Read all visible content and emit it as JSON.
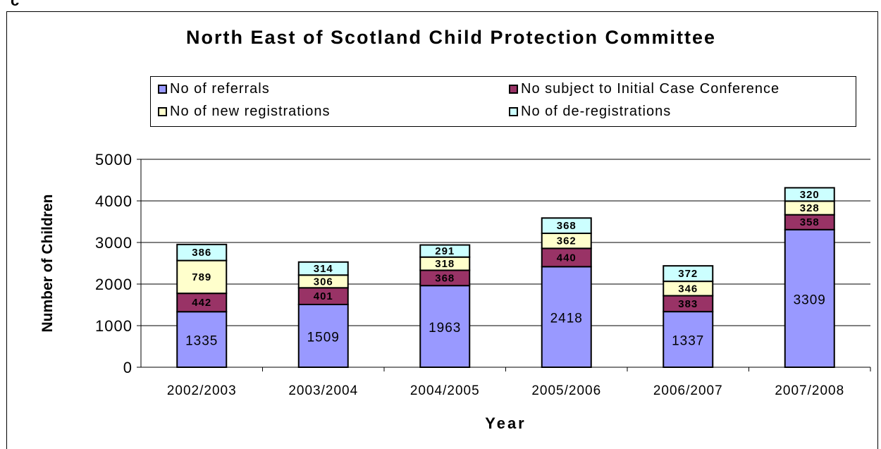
{
  "corner_text": "c",
  "chart_data": {
    "type": "bar",
    "stacked": true,
    "title": "North East of Scotland Child Protection Committee",
    "xlabel": "Year",
    "ylabel": "Number of Children",
    "ylim": [
      0,
      5000
    ],
    "yticks": [
      "0",
      "1000",
      "2000",
      "3000",
      "4000",
      "5000"
    ],
    "grid": true,
    "legend_position": "top",
    "categories": [
      "2002/2003",
      "2003/2004",
      "2004/2005",
      "2005/2006",
      "2006/2007",
      "2007/2008"
    ],
    "series": [
      {
        "name": "No of referrals",
        "color": "#9999ff",
        "values": [
          1335,
          1509,
          1963,
          2418,
          1337,
          3309
        ]
      },
      {
        "name": "No subject to Initial Case Conference",
        "color": "#993366",
        "values": [
          442,
          401,
          368,
          440,
          383,
          358
        ]
      },
      {
        "name": "No of new registrations",
        "color": "#ffffcc",
        "values": [
          789,
          306,
          318,
          362,
          346,
          328
        ]
      },
      {
        "name": "No of de-registrations",
        "color": "#ccffff",
        "values": [
          386,
          314,
          291,
          368,
          372,
          320
        ]
      }
    ]
  }
}
